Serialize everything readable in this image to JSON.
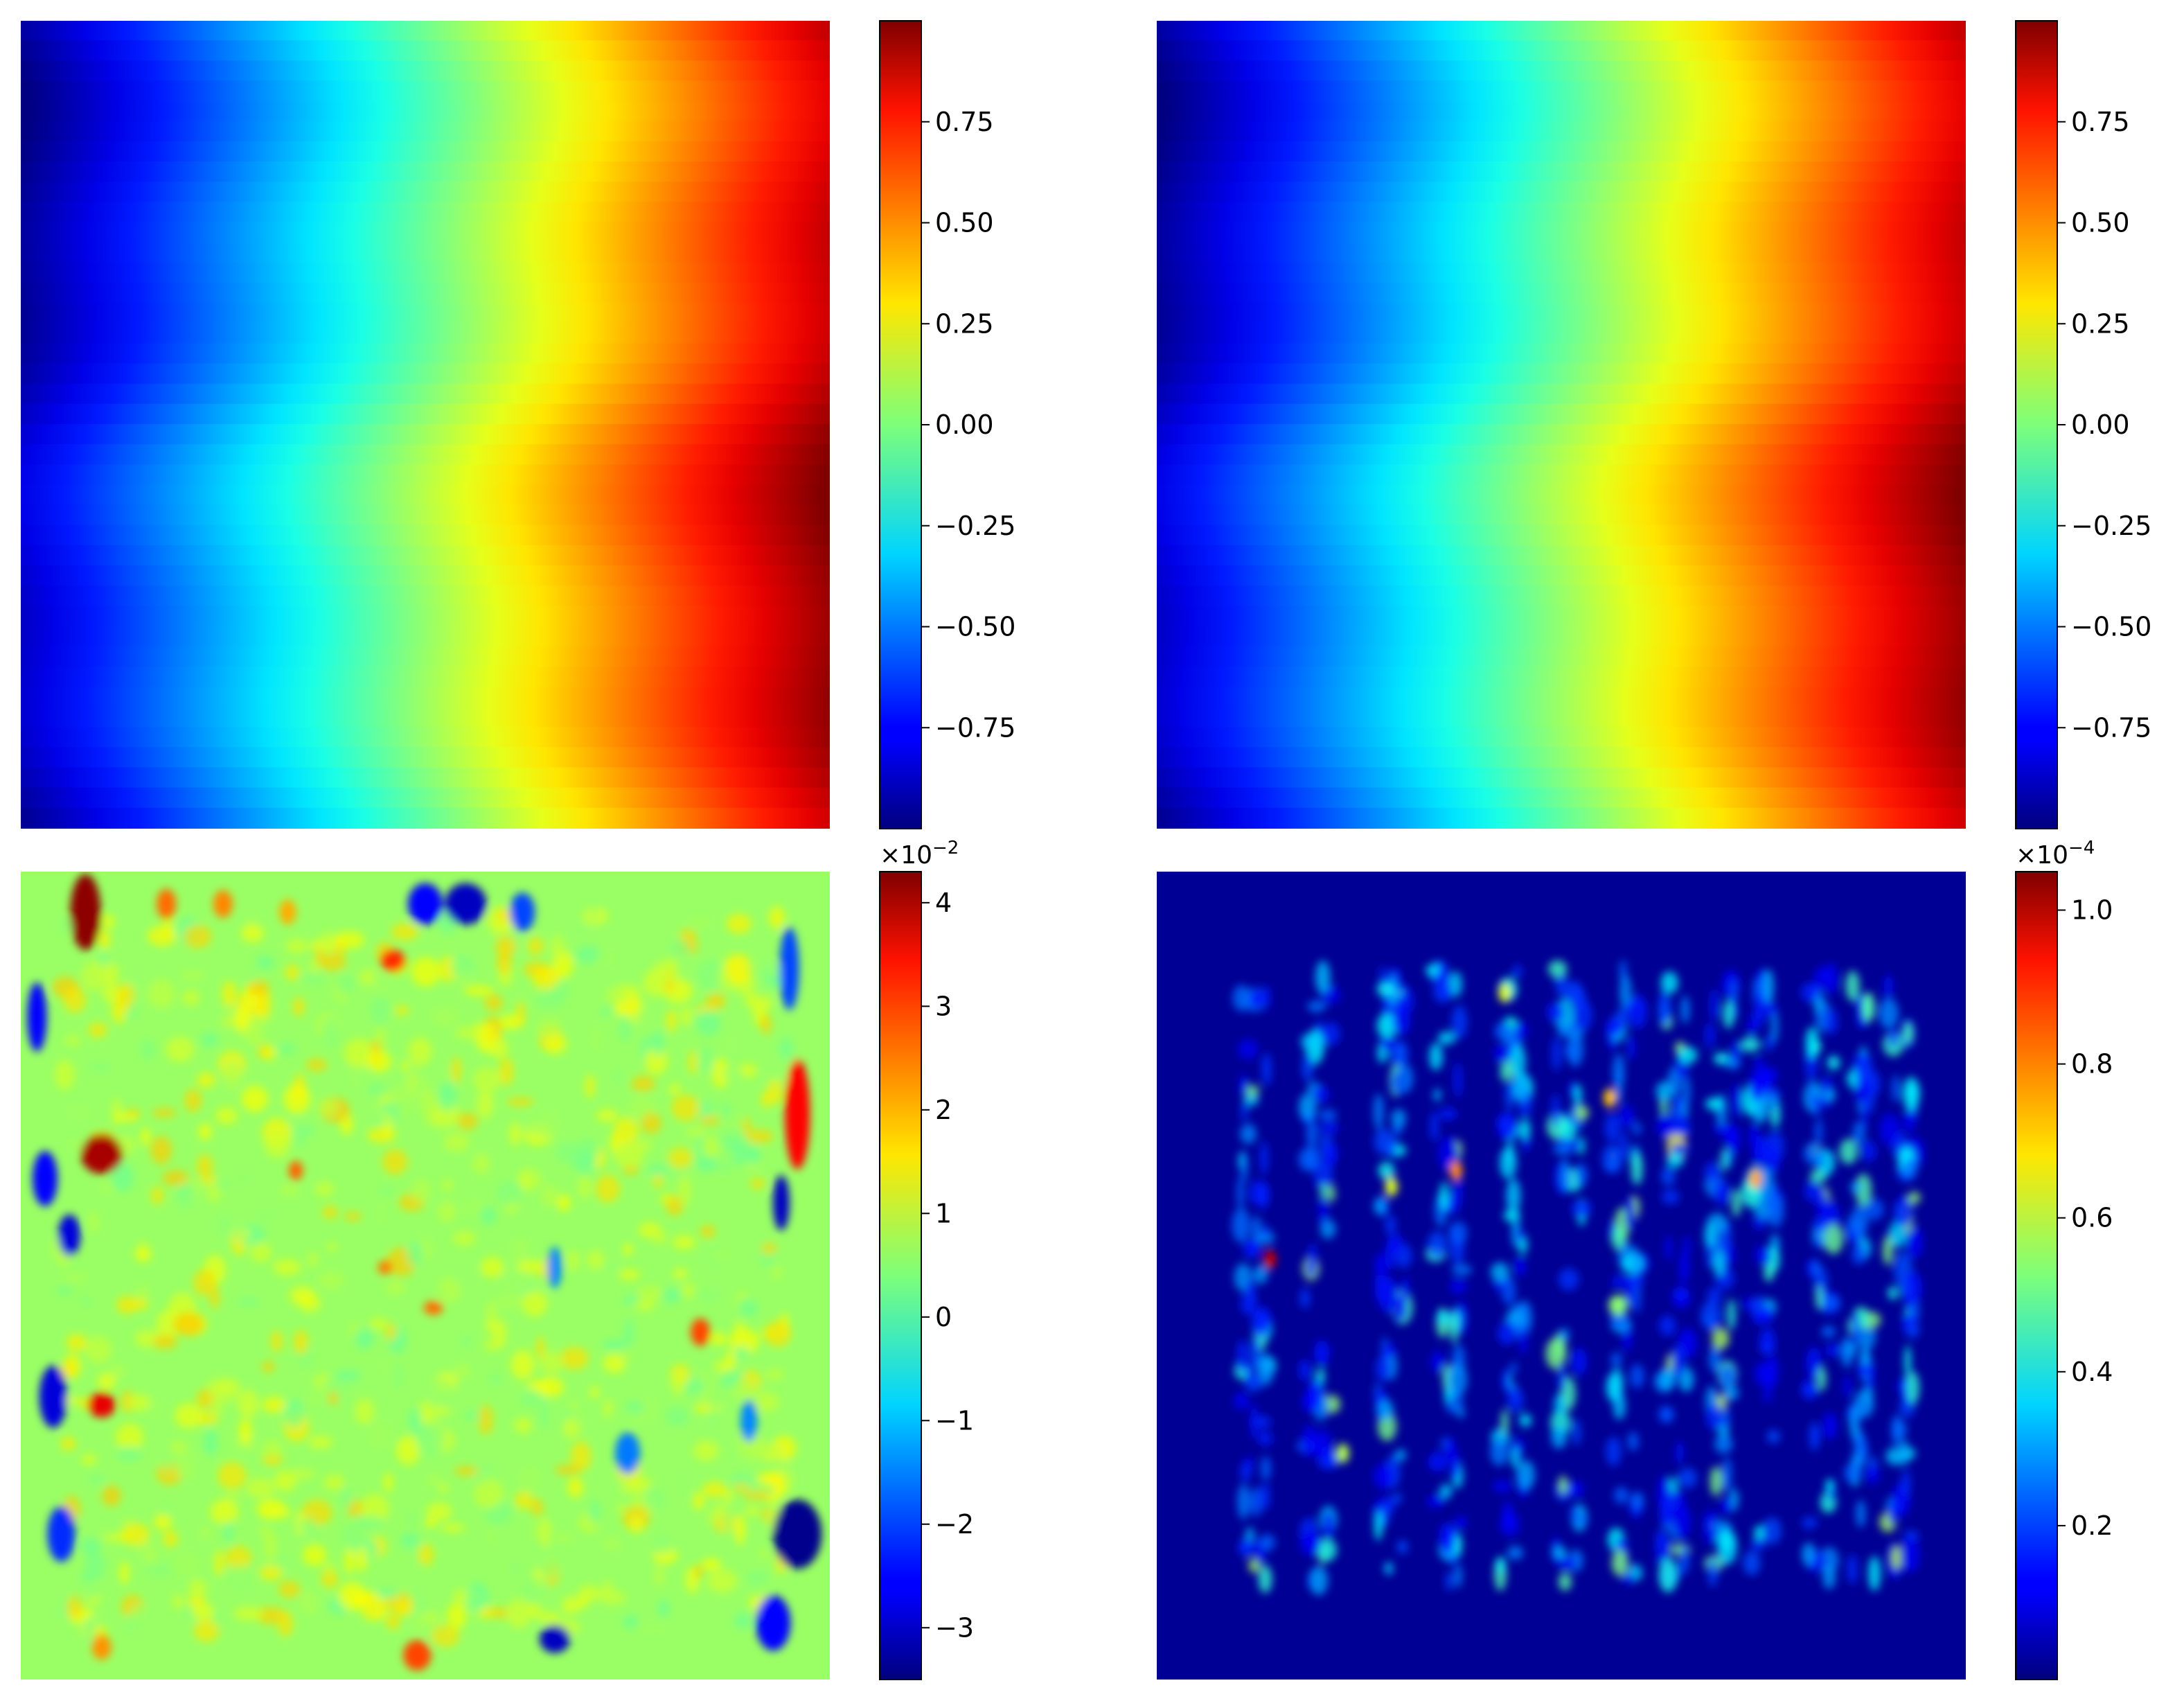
{
  "chart_data": [
    {
      "type": "heatmap",
      "panel": "top-left",
      "colormap": "jet",
      "grid": false,
      "axes_visible": false,
      "colorbar": {
        "vmin": -1.0,
        "vmax": 1.0,
        "ticks": [
          -0.75,
          -0.5,
          -0.25,
          0.0,
          0.25,
          0.5,
          0.75
        ],
        "tick_labels": [
          "−0.75",
          "−0.50",
          "−0.25",
          "0.00",
          "0.25",
          "0.50",
          "0.75"
        ],
        "multiplier": ""
      },
      "field_description_values": {
        "left_edge": -1.0,
        "right_edge": 1.0,
        "pattern": "horizontal gradient with wavy vertical contours"
      }
    },
    {
      "type": "heatmap",
      "panel": "top-right",
      "colormap": "jet",
      "grid": false,
      "axes_visible": false,
      "colorbar": {
        "vmin": -1.0,
        "vmax": 1.0,
        "ticks": [
          -0.75,
          -0.5,
          -0.25,
          0.0,
          0.25,
          0.5,
          0.75
        ],
        "tick_labels": [
          "−0.75",
          "−0.50",
          "−0.25",
          "0.00",
          "0.25",
          "0.50",
          "0.75"
        ],
        "multiplier": ""
      },
      "field_description_values": {
        "left_edge": -1.0,
        "right_edge": 1.0,
        "pattern": "horizontal gradient with wavy vertical contours"
      }
    },
    {
      "type": "heatmap",
      "panel": "bottom-left",
      "colormap": "jet",
      "grid": false,
      "axes_visible": false,
      "colorbar": {
        "vmin": -3.5,
        "vmax": 4.3,
        "ticks": [
          -3,
          -2,
          -1,
          0,
          1,
          2,
          3,
          4
        ],
        "tick_labels": [
          "−3",
          "−2",
          "−1",
          "0",
          "1",
          "2",
          "3",
          "4"
        ],
        "multiplier": "×10",
        "multiplier_exponent": "−2"
      },
      "field_description_values": {
        "background": 0.5,
        "pattern": "noisy error field with strong extrema near boundaries"
      }
    },
    {
      "type": "heatmap",
      "panel": "bottom-right",
      "colormap": "jet",
      "grid": false,
      "axes_visible": false,
      "colorbar": {
        "vmin": 0.0,
        "vmax": 1.05,
        "ticks": [
          0.2,
          0.4,
          0.6,
          0.8,
          1.0
        ],
        "tick_labels": [
          "0.2",
          "0.4",
          "0.6",
          "0.8",
          "1.0"
        ],
        "multiplier": "×10",
        "multiplier_exponent": "−4"
      },
      "field_description_values": {
        "background": 0.0,
        "pattern": "sparse vertical streaks of higher values in interior"
      }
    }
  ]
}
